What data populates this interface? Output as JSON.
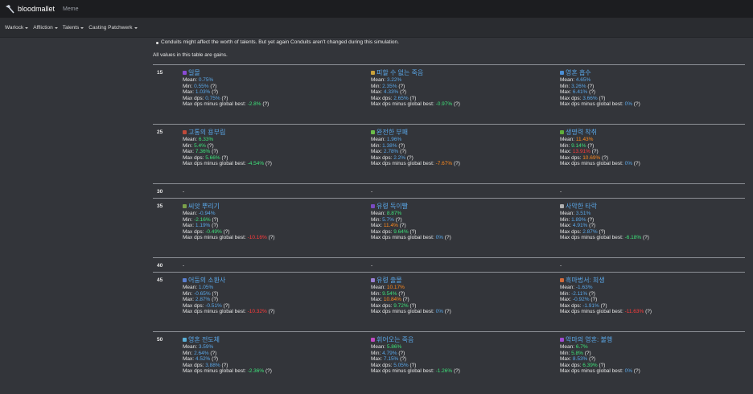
{
  "app": {
    "name": "bloodmallet",
    "secondary": "Meme"
  },
  "nav": [
    {
      "label": "Warlock"
    },
    {
      "label": "Affliction"
    },
    {
      "label": "Talents"
    },
    {
      "label": "Casting Patchwerk"
    }
  ],
  "notes": {
    "conduits": "Conduits might affect the worth of talents. But yet again Conduits aren't changed during this simulation.",
    "gains": "All values in this table are gains."
  },
  "labels": {
    "mean": "Mean:",
    "min": "Min:",
    "max": "Max:",
    "maxdps": "Max dps:",
    "global": "Max dps minus global best:",
    "q": "(?)"
  },
  "rows": [
    {
      "level": "15",
      "cells": [
        {
          "name": "일몰",
          "icon": "#8a4bd6",
          "mean": "0.75%",
          "min": "0.55%",
          "max": "1.03%",
          "maxdps": "0.75%",
          "global": "-2.8%",
          "colors": [
            "b",
            "b",
            "b",
            "b",
            "g"
          ]
        },
        {
          "name": "피할 수 없는 죽음",
          "icon": "#c9a13b",
          "mean": "3.22%",
          "min": "2.35%",
          "max": "4.33%",
          "maxdps": "2.65%",
          "global": "-0.97%",
          "colors": [
            "b",
            "b",
            "b",
            "b",
            "g"
          ]
        },
        {
          "name": "영혼 흡수",
          "icon": "#4b8fd6",
          "mean": "4.65%",
          "min": "3.26%",
          "max": "6.41%",
          "maxdps": "3.66%",
          "global": "0%",
          "colors": [
            "b",
            "b",
            "b",
            "b",
            "b"
          ]
        }
      ]
    },
    {
      "level": "25",
      "cells": [
        {
          "name": "고통의 용부림",
          "icon": "#c04a3a",
          "mean": "6.33%",
          "min": "5.4%",
          "max": "7.36%",
          "maxdps": "5.66%",
          "global": "-4.54%",
          "colors": [
            "g",
            "g",
            "g",
            "g",
            "g"
          ]
        },
        {
          "name": "완전한 부패",
          "icon": "#6bbd4a",
          "mean": "1.96%",
          "min": "1.38%",
          "max": "2.78%",
          "maxdps": "2.2%",
          "global": "-7.67%",
          "colors": [
            "b",
            "b",
            "b",
            "b",
            "o"
          ]
        },
        {
          "name": "생명력 착취",
          "icon": "#5fae3a",
          "mean": "11.43%",
          "min": "9.14%",
          "max": "13.91%",
          "maxdps": "10.69%",
          "global": "0%",
          "colors": [
            "o",
            "g",
            "r",
            "o",
            "b"
          ]
        }
      ]
    },
    {
      "level": "30",
      "dash": "-"
    },
    {
      "level": "35",
      "cells": [
        {
          "name": "씨앗 뿌리기",
          "icon": "#7aa04a",
          "mean": "-0.94%",
          "min": "-2.16%",
          "max": "1.19%",
          "maxdps": "-0.49%",
          "global": "-10.16%",
          "colors": [
            "b",
            "g",
            "b",
            "g",
            "r"
          ]
        },
        {
          "name": "유령 독이빨",
          "icon": "#7a4bc0",
          "mean": "8.87%",
          "min": "5.7%",
          "max": "11.4%",
          "maxdps": "9.64%",
          "global": "0%",
          "colors": [
            "g",
            "b",
            "o",
            "g",
            "b"
          ]
        },
        {
          "name": "사악한 타락",
          "icon": "#b0b0b0",
          "mean": "3.51%",
          "min": "1.89%",
          "max": "4.91%",
          "maxdps": "2.87%",
          "global": "-6.18%",
          "colors": [
            "b",
            "b",
            "b",
            "b",
            "g"
          ]
        }
      ]
    },
    {
      "level": "40",
      "dash": "-"
    },
    {
      "level": "45",
      "cells": [
        {
          "name": "어둠의 소환사",
          "icon": "#5a7fd0",
          "mean": "1.05%",
          "min": "-0.65%",
          "max": "2.87%",
          "maxdps": "-0.51%",
          "global": "-10.32%",
          "colors": [
            "b",
            "b",
            "b",
            "b",
            "r"
          ]
        },
        {
          "name": "유령 출몰",
          "icon": "#9a7fd0",
          "mean": "10.17%",
          "min": "9.54%",
          "max": "10.84%",
          "maxdps": "9.72%",
          "global": "0%",
          "colors": [
            "o",
            "g",
            "o",
            "g",
            "b"
          ]
        },
        {
          "name": "흑마법서: 희생",
          "icon": "#d06a3a",
          "mean": "-1.63%",
          "min": "-2.11%",
          "max": "-0.92%",
          "maxdps": "-1.91%",
          "global": "-11.63%",
          "colors": [
            "b",
            "b",
            "b",
            "b",
            "r"
          ]
        }
      ]
    },
    {
      "level": "50",
      "cells": [
        {
          "name": "영혼 전도체",
          "icon": "#5ab0d8",
          "mean": "3.59%",
          "min": "2.64%",
          "max": "4.52%",
          "maxdps": "3.88%",
          "global": "-2.36%",
          "colors": [
            "b",
            "b",
            "b",
            "b",
            "g"
          ]
        },
        {
          "name": "휘어오는 죽음",
          "icon": "#c04ac0",
          "mean": "5.86%",
          "min": "4.79%",
          "max": "7.15%",
          "maxdps": "5.05%",
          "global": "-1.26%",
          "colors": [
            "g",
            "b",
            "b",
            "b",
            "g"
          ]
        },
        {
          "name": "악마의 영혼: 불행",
          "icon": "#a04ad0",
          "mean": "6.7%",
          "min": "5.8%",
          "max": "8.53%",
          "maxdps": "6.39%",
          "global": "0%",
          "colors": [
            "g",
            "g",
            "b",
            "g",
            "b"
          ]
        }
      ]
    }
  ]
}
